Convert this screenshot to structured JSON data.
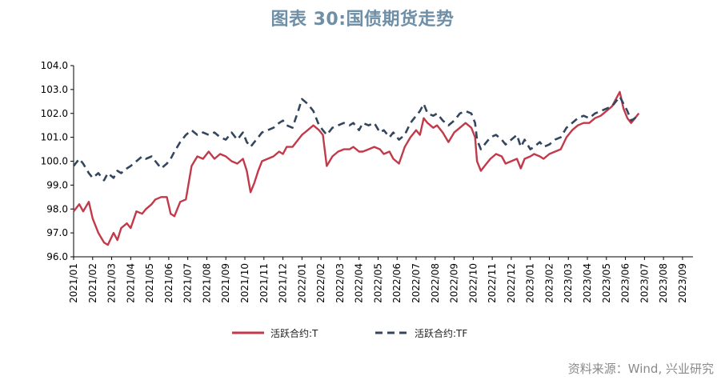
{
  "title": "图表 30:国债期货走势",
  "source": "资料来源：Wind, 兴业研究",
  "colors": {
    "T": "#c23a4a",
    "TF": "#34465e",
    "title": "#6f8fa6"
  },
  "chart_data": {
    "type": "line",
    "title": "图表 30:国债期货走势",
    "ylim": [
      96.0,
      104.0
    ],
    "yticks": [
      "96.0",
      "97.0",
      "98.0",
      "99.0",
      "100.0",
      "101.0",
      "102.0",
      "103.0",
      "104.0"
    ],
    "xlabels": [
      "2021/01",
      "2021/02",
      "2021/03",
      "2021/04",
      "2021/05",
      "2021/06",
      "2021/07",
      "2021/08",
      "2021/09",
      "2021/10",
      "2021/11",
      "2021/12",
      "2022/01",
      "2022/02",
      "2022/03",
      "2022/04",
      "2022/05",
      "2022/06",
      "2022/07",
      "2022/08",
      "2022/09",
      "2022/10",
      "2022/11",
      "2022/12",
      "2023/01",
      "2023/02",
      "2023/03",
      "2023/04",
      "2023/05",
      "2023/06",
      "2023/07",
      "2023/08",
      "2023/09"
    ],
    "grid": false,
    "legend_position": "bottom",
    "series": [
      {
        "name": "活跃合约:T",
        "style": "solid",
        "points": [
          [
            0,
            97.9
          ],
          [
            0.3,
            98.2
          ],
          [
            0.5,
            97.9
          ],
          [
            0.8,
            98.3
          ],
          [
            1.0,
            97.6
          ],
          [
            1.3,
            97.0
          ],
          [
            1.6,
            96.6
          ],
          [
            1.8,
            96.5
          ],
          [
            2.1,
            97.0
          ],
          [
            2.3,
            96.7
          ],
          [
            2.5,
            97.2
          ],
          [
            2.8,
            97.4
          ],
          [
            3.0,
            97.2
          ],
          [
            3.3,
            97.9
          ],
          [
            3.6,
            97.8
          ],
          [
            3.8,
            98.0
          ],
          [
            4.1,
            98.2
          ],
          [
            4.3,
            98.4
          ],
          [
            4.6,
            98.5
          ],
          [
            4.9,
            98.5
          ],
          [
            5.1,
            97.8
          ],
          [
            5.3,
            97.7
          ],
          [
            5.6,
            98.3
          ],
          [
            5.9,
            98.4
          ],
          [
            6.2,
            99.8
          ],
          [
            6.5,
            100.2
          ],
          [
            6.8,
            100.1
          ],
          [
            7.1,
            100.4
          ],
          [
            7.4,
            100.1
          ],
          [
            7.7,
            100.3
          ],
          [
            8.0,
            100.2
          ],
          [
            8.3,
            100.0
          ],
          [
            8.6,
            99.9
          ],
          [
            8.9,
            100.1
          ],
          [
            9.1,
            99.6
          ],
          [
            9.3,
            98.7
          ],
          [
            9.5,
            99.1
          ],
          [
            9.7,
            99.6
          ],
          [
            9.9,
            100.0
          ],
          [
            10.2,
            100.1
          ],
          [
            10.5,
            100.2
          ],
          [
            10.8,
            100.4
          ],
          [
            11.0,
            100.3
          ],
          [
            11.2,
            100.6
          ],
          [
            11.5,
            100.6
          ],
          [
            11.8,
            100.9
          ],
          [
            12.0,
            101.1
          ],
          [
            12.3,
            101.3
          ],
          [
            12.6,
            101.5
          ],
          [
            12.9,
            101.3
          ],
          [
            13.1,
            101.1
          ],
          [
            13.3,
            99.8
          ],
          [
            13.6,
            100.2
          ],
          [
            13.9,
            100.4
          ],
          [
            14.2,
            100.5
          ],
          [
            14.5,
            100.5
          ],
          [
            14.7,
            100.6
          ],
          [
            15.0,
            100.4
          ],
          [
            15.2,
            100.4
          ],
          [
            15.5,
            100.5
          ],
          [
            15.8,
            100.6
          ],
          [
            16.1,
            100.5
          ],
          [
            16.3,
            100.3
          ],
          [
            16.6,
            100.4
          ],
          [
            16.8,
            100.1
          ],
          [
            17.1,
            99.9
          ],
          [
            17.4,
            100.6
          ],
          [
            17.7,
            101.0
          ],
          [
            18.0,
            101.3
          ],
          [
            18.2,
            101.1
          ],
          [
            18.4,
            101.8
          ],
          [
            18.6,
            101.6
          ],
          [
            18.9,
            101.4
          ],
          [
            19.1,
            101.5
          ],
          [
            19.4,
            101.2
          ],
          [
            19.7,
            100.8
          ],
          [
            20.0,
            101.2
          ],
          [
            20.3,
            101.4
          ],
          [
            20.6,
            101.6
          ],
          [
            20.9,
            101.4
          ],
          [
            21.1,
            101.0
          ],
          [
            21.2,
            100.0
          ],
          [
            21.4,
            99.6
          ],
          [
            21.6,
            99.8
          ],
          [
            21.9,
            100.1
          ],
          [
            22.2,
            100.3
          ],
          [
            22.5,
            100.2
          ],
          [
            22.7,
            99.9
          ],
          [
            23.0,
            100.0
          ],
          [
            23.3,
            100.1
          ],
          [
            23.5,
            99.7
          ],
          [
            23.7,
            100.1
          ],
          [
            24.0,
            100.2
          ],
          [
            24.2,
            100.3
          ],
          [
            24.5,
            100.2
          ],
          [
            24.7,
            100.1
          ],
          [
            25.0,
            100.3
          ],
          [
            25.3,
            100.4
          ],
          [
            25.6,
            100.5
          ],
          [
            25.9,
            101.0
          ],
          [
            26.2,
            101.3
          ],
          [
            26.5,
            101.5
          ],
          [
            26.8,
            101.6
          ],
          [
            27.1,
            101.6
          ],
          [
            27.4,
            101.8
          ],
          [
            27.7,
            101.9
          ],
          [
            28.0,
            102.1
          ],
          [
            28.3,
            102.3
          ],
          [
            28.5,
            102.6
          ],
          [
            28.7,
            102.9
          ],
          [
            28.9,
            102.2
          ],
          [
            29.1,
            101.8
          ],
          [
            29.3,
            101.6
          ],
          [
            29.5,
            101.8
          ],
          [
            29.7,
            102.0
          ]
        ]
      },
      {
        "name": "活跃合约:TF",
        "style": "dashed",
        "points": [
          [
            0,
            99.8
          ],
          [
            0.3,
            100.1
          ],
          [
            0.5,
            99.9
          ],
          [
            0.8,
            99.5
          ],
          [
            1.0,
            99.3
          ],
          [
            1.3,
            99.5
          ],
          [
            1.6,
            99.2
          ],
          [
            1.8,
            99.5
          ],
          [
            2.1,
            99.3
          ],
          [
            2.3,
            99.6
          ],
          [
            2.5,
            99.5
          ],
          [
            2.8,
            99.7
          ],
          [
            3.0,
            99.8
          ],
          [
            3.3,
            100.0
          ],
          [
            3.6,
            100.2
          ],
          [
            3.8,
            100.1
          ],
          [
            4.1,
            100.2
          ],
          [
            4.3,
            100.0
          ],
          [
            4.6,
            99.7
          ],
          [
            4.9,
            99.9
          ],
          [
            5.1,
            100.1
          ],
          [
            5.3,
            100.4
          ],
          [
            5.6,
            100.8
          ],
          [
            5.9,
            101.1
          ],
          [
            6.2,
            101.3
          ],
          [
            6.5,
            101.1
          ],
          [
            6.8,
            101.2
          ],
          [
            7.1,
            101.1
          ],
          [
            7.4,
            101.2
          ],
          [
            7.7,
            101.0
          ],
          [
            8.0,
            100.9
          ],
          [
            8.3,
            101.2
          ],
          [
            8.6,
            100.9
          ],
          [
            8.9,
            101.2
          ],
          [
            9.1,
            100.8
          ],
          [
            9.3,
            100.6
          ],
          [
            9.5,
            100.8
          ],
          [
            9.7,
            101.0
          ],
          [
            9.9,
            101.2
          ],
          [
            10.2,
            101.3
          ],
          [
            10.5,
            101.4
          ],
          [
            10.8,
            101.6
          ],
          [
            11.0,
            101.7
          ],
          [
            11.2,
            101.5
          ],
          [
            11.5,
            101.4
          ],
          [
            11.8,
            102.1
          ],
          [
            12.0,
            102.6
          ],
          [
            12.3,
            102.4
          ],
          [
            12.6,
            102.1
          ],
          [
            12.9,
            101.5
          ],
          [
            13.1,
            101.3
          ],
          [
            13.3,
            101.1
          ],
          [
            13.6,
            101.4
          ],
          [
            13.9,
            101.5
          ],
          [
            14.2,
            101.6
          ],
          [
            14.5,
            101.5
          ],
          [
            14.7,
            101.6
          ],
          [
            15.0,
            101.3
          ],
          [
            15.2,
            101.6
          ],
          [
            15.5,
            101.5
          ],
          [
            15.8,
            101.6
          ],
          [
            16.1,
            101.2
          ],
          [
            16.3,
            101.3
          ],
          [
            16.6,
            101.0
          ],
          [
            16.8,
            101.2
          ],
          [
            17.1,
            100.9
          ],
          [
            17.4,
            101.1
          ],
          [
            17.7,
            101.6
          ],
          [
            18.0,
            101.9
          ],
          [
            18.2,
            102.1
          ],
          [
            18.4,
            102.4
          ],
          [
            18.6,
            102.0
          ],
          [
            18.9,
            101.9
          ],
          [
            19.1,
            102.0
          ],
          [
            19.4,
            101.7
          ],
          [
            19.7,
            101.5
          ],
          [
            20.0,
            101.7
          ],
          [
            20.3,
            102.0
          ],
          [
            20.6,
            102.1
          ],
          [
            20.9,
            102.0
          ],
          [
            21.1,
            101.6
          ],
          [
            21.2,
            100.9
          ],
          [
            21.4,
            100.5
          ],
          [
            21.6,
            100.7
          ],
          [
            21.9,
            101.0
          ],
          [
            22.2,
            101.1
          ],
          [
            22.5,
            100.9
          ],
          [
            22.7,
            100.7
          ],
          [
            23.0,
            100.9
          ],
          [
            23.3,
            101.1
          ],
          [
            23.5,
            100.6
          ],
          [
            23.7,
            100.9
          ],
          [
            24.0,
            100.5
          ],
          [
            24.2,
            100.6
          ],
          [
            24.5,
            100.8
          ],
          [
            24.7,
            100.6
          ],
          [
            25.0,
            100.7
          ],
          [
            25.3,
            100.9
          ],
          [
            25.6,
            101.0
          ],
          [
            25.9,
            101.4
          ],
          [
            26.2,
            101.6
          ],
          [
            26.5,
            101.8
          ],
          [
            26.8,
            101.9
          ],
          [
            27.1,
            101.8
          ],
          [
            27.4,
            102.0
          ],
          [
            27.7,
            102.1
          ],
          [
            28.0,
            102.2
          ],
          [
            28.3,
            102.3
          ],
          [
            28.5,
            102.5
          ],
          [
            28.7,
            102.7
          ],
          [
            28.9,
            102.4
          ],
          [
            29.1,
            102.1
          ],
          [
            29.3,
            101.7
          ],
          [
            29.5,
            101.8
          ],
          [
            29.7,
            102.0
          ]
        ]
      }
    ]
  }
}
